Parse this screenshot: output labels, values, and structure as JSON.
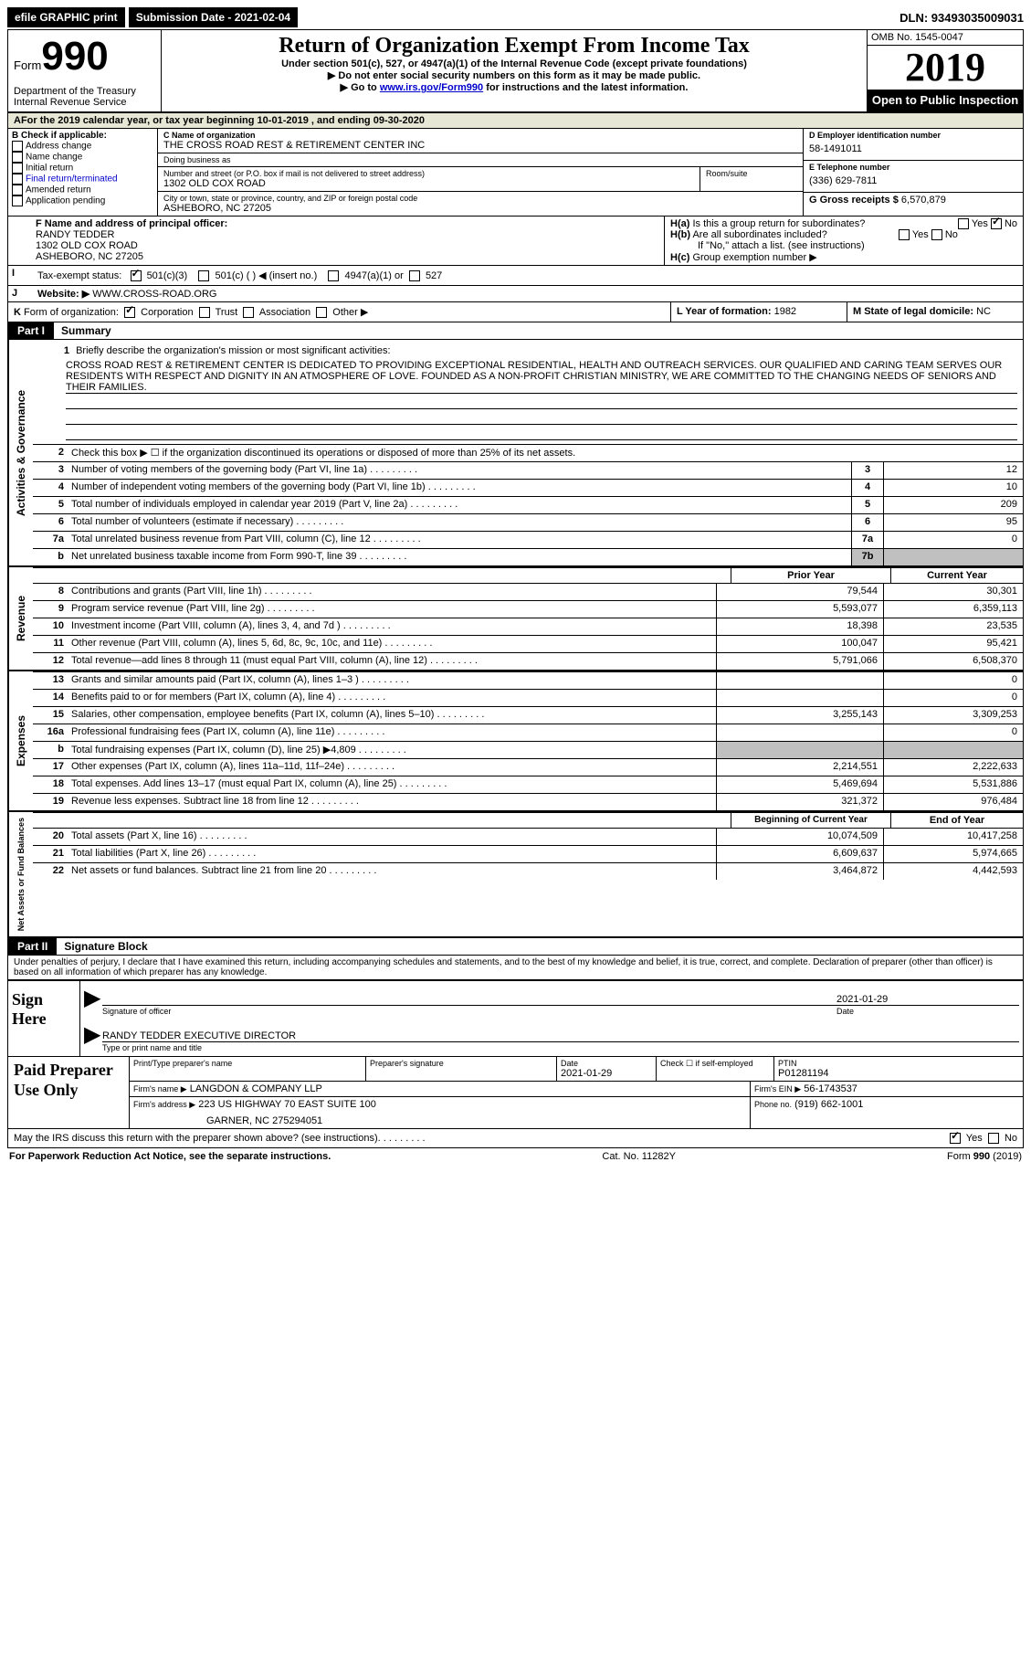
{
  "top": {
    "efile": "efile GRAPHIC print",
    "submission": "Submission Date - 2021-02-04",
    "dln": "DLN: 93493035009031"
  },
  "header": {
    "form_word": "Form",
    "form_num": "990",
    "dept": "Department of the Treasury\nInternal Revenue Service",
    "title": "Return of Organization Exempt From Income Tax",
    "subtitle": "Under section 501(c), 527, or 4947(a)(1) of the Internal Revenue Code (except private foundations)",
    "note1": "▶ Do not enter social security numbers on this form as it may be made public.",
    "note2_pre": "▶ Go to ",
    "note2_link": "www.irs.gov/Form990",
    "note2_post": " for instructions and the latest information.",
    "omb": "OMB No. 1545-0047",
    "year": "2019",
    "inspection": "Open to Public Inspection"
  },
  "periodA": "For the 2019 calendar year, or tax year beginning 10-01-2019   , and ending 09-30-2020",
  "boxB": {
    "label": "B Check if applicable:",
    "opts": [
      "Address change",
      "Name change",
      "Initial return",
      "Final return/terminated",
      "Amended return",
      "Application pending"
    ]
  },
  "boxC": {
    "label_name": "C Name of organization",
    "org_name": "THE CROSS ROAD REST & RETIREMENT CENTER INC",
    "dba_label": "Doing business as",
    "street_label": "Number and street (or P.O. box if mail is not delivered to street address)",
    "room_label": "Room/suite",
    "street": "1302 OLD COX ROAD",
    "city_label": "City or town, state or province, country, and ZIP or foreign postal code",
    "city": "ASHEBORO, NC  27205"
  },
  "boxD": {
    "label": "D Employer identification number",
    "value": "58-1491011"
  },
  "boxE": {
    "label": "E Telephone number",
    "value": "(336) 629-7811"
  },
  "boxG": {
    "label": "G Gross receipts $",
    "value": "6,570,879"
  },
  "boxF": {
    "label": "F  Name and address of principal officer:",
    "name": "RANDY TEDDER",
    "addr1": "1302 OLD COX ROAD",
    "addr2": "ASHEBORO, NC  27205"
  },
  "boxH": {
    "a": "Is this a group return for subordinates?",
    "b": "Are all subordinates included?",
    "note": "If \"No,\" attach a list. (see instructions)",
    "c": "Group exemption number ▶"
  },
  "boxI": {
    "label": "Tax-exempt status:",
    "opt1": "501(c)(3)",
    "opt2": "501(c) (  ) ◀ (insert no.)",
    "opt3": "4947(a)(1) or",
    "opt4": "527"
  },
  "boxJ": {
    "label": "Website: ▶",
    "value": "WWW.CROSS-ROAD.ORG"
  },
  "boxK": {
    "label": "Form of organization:",
    "corp": "Corporation",
    "trust": "Trust",
    "assoc": "Association",
    "other": "Other ▶"
  },
  "boxL": {
    "label": "L Year of formation:",
    "value": "1982"
  },
  "boxM": {
    "label": "M State of legal domicile:",
    "value": "NC"
  },
  "part1": {
    "tab": "Part I",
    "title": "Summary"
  },
  "summary": {
    "q1_label": "Briefly describe the organization's mission or most significant activities:",
    "q1_text": "CROSS ROAD REST & RETIREMENT CENTER IS DEDICATED TO PROVIDING EXCEPTIONAL RESIDENTIAL, HEALTH AND OUTREACH SERVICES. OUR QUALIFIED AND CARING TEAM SERVES OUR RESIDENTS WITH RESPECT AND DIGNITY IN AN ATMOSPHERE OF LOVE. FOUNDED AS A NON-PROFIT CHRISTIAN MINISTRY, WE ARE COMMITTED TO THE CHANGING NEEDS OF SENIORS AND THEIR FAMILIES.",
    "q2": "Check this box ▶ ☐  if the organization discontinued its operations or disposed of more than 25% of its net assets.",
    "lines": [
      {
        "n": "3",
        "d": "Number of voting members of the governing body (Part VI, line 1a)",
        "box": "3",
        "v": "12"
      },
      {
        "n": "4",
        "d": "Number of independent voting members of the governing body (Part VI, line 1b)",
        "box": "4",
        "v": "10"
      },
      {
        "n": "5",
        "d": "Total number of individuals employed in calendar year 2019 (Part V, line 2a)",
        "box": "5",
        "v": "209"
      },
      {
        "n": "6",
        "d": "Total number of volunteers (estimate if necessary)",
        "box": "6",
        "v": "95"
      },
      {
        "n": "7a",
        "d": "Total unrelated business revenue from Part VIII, column (C), line 12",
        "box": "7a",
        "v": "0"
      },
      {
        "n": "b",
        "d": "Net unrelated business taxable income from Form 990-T, line 39",
        "box": "7b",
        "v": "",
        "shaded": true
      }
    ]
  },
  "revenue": {
    "head_prior": "Prior Year",
    "head_curr": "Current Year",
    "vlabel": "Revenue",
    "lines": [
      {
        "n": "8",
        "d": "Contributions and grants (Part VIII, line 1h)",
        "p": "79,544",
        "c": "30,301"
      },
      {
        "n": "9",
        "d": "Program service revenue (Part VIII, line 2g)",
        "p": "5,593,077",
        "c": "6,359,113"
      },
      {
        "n": "10",
        "d": "Investment income (Part VIII, column (A), lines 3, 4, and 7d )",
        "p": "18,398",
        "c": "23,535"
      },
      {
        "n": "11",
        "d": "Other revenue (Part VIII, column (A), lines 5, 6d, 8c, 9c, 10c, and 11e)",
        "p": "100,047",
        "c": "95,421"
      },
      {
        "n": "12",
        "d": "Total revenue—add lines 8 through 11 (must equal Part VIII, column (A), line 12)",
        "p": "5,791,066",
        "c": "6,508,370"
      }
    ]
  },
  "expenses": {
    "vlabel": "Expenses",
    "lines": [
      {
        "n": "13",
        "d": "Grants and similar amounts paid (Part IX, column (A), lines 1–3 )",
        "p": "",
        "c": "0"
      },
      {
        "n": "14",
        "d": "Benefits paid to or for members (Part IX, column (A), line 4)",
        "p": "",
        "c": "0"
      },
      {
        "n": "15",
        "d": "Salaries, other compensation, employee benefits (Part IX, column (A), lines 5–10)",
        "p": "3,255,143",
        "c": "3,309,253"
      },
      {
        "n": "16a",
        "d": "Professional fundraising fees (Part IX, column (A), line 11e)",
        "p": "",
        "c": "0"
      },
      {
        "n": "b",
        "d": "Total fundraising expenses (Part IX, column (D), line 25) ▶4,809",
        "p": "shaded",
        "c": "shaded"
      },
      {
        "n": "17",
        "d": "Other expenses (Part IX, column (A), lines 11a–11d, 11f–24e)",
        "p": "2,214,551",
        "c": "2,222,633"
      },
      {
        "n": "18",
        "d": "Total expenses. Add lines 13–17 (must equal Part IX, column (A), line 25)",
        "p": "5,469,694",
        "c": "5,531,886"
      },
      {
        "n": "19",
        "d": "Revenue less expenses. Subtract line 18 from line 12",
        "p": "321,372",
        "c": "976,484"
      }
    ]
  },
  "netassets": {
    "vlabel": "Net Assets or Fund Balances",
    "head_begin": "Beginning of Current Year",
    "head_end": "End of Year",
    "lines": [
      {
        "n": "20",
        "d": "Total assets (Part X, line 16)",
        "p": "10,074,509",
        "c": "10,417,258"
      },
      {
        "n": "21",
        "d": "Total liabilities (Part X, line 26)",
        "p": "6,609,637",
        "c": "5,974,665"
      },
      {
        "n": "22",
        "d": "Net assets or fund balances. Subtract line 21 from line 20",
        "p": "3,464,872",
        "c": "4,442,593"
      }
    ]
  },
  "part2": {
    "tab": "Part II",
    "title": "Signature Block"
  },
  "sig": {
    "perjury": "Under penalties of perjury, I declare that I have examined this return, including accompanying schedules and statements, and to the best of my knowledge and belief, it is true, correct, and complete. Declaration of preparer (other than officer) is based on all information of which preparer has any knowledge.",
    "sign_here": "Sign Here",
    "sig_officer": "Signature of officer",
    "date_label": "Date",
    "date_val": "2021-01-29",
    "typed_name": "RANDY TEDDER  EXECUTIVE DIRECTOR",
    "typed_label": "Type or print name and title"
  },
  "prep": {
    "title": "Paid Preparer Use Only",
    "h1": "Print/Type preparer's name",
    "h2": "Preparer's signature",
    "h3_label": "Date",
    "h3_val": "2021-01-29",
    "h4": "Check ☐ if self-employed",
    "h5_label": "PTIN",
    "h5_val": "P01281194",
    "firm_name_label": "Firm's name    ▶",
    "firm_name": "LANGDON & COMPANY LLP",
    "firm_ein_label": "Firm's EIN ▶",
    "firm_ein": "56-1743537",
    "firm_addr_label": "Firm's address ▶",
    "firm_addr1": "223 US HIGHWAY 70 EAST SUITE 100",
    "firm_addr2": "GARNER, NC  275294051",
    "phone_label": "Phone no.",
    "phone": "(919) 662-1001"
  },
  "discuss": {
    "q": "May the IRS discuss this return with the preparer shown above? (see instructions)",
    "yes": "Yes",
    "no": "No"
  },
  "footer": {
    "left": "For Paperwork Reduction Act Notice, see the separate instructions.",
    "mid": "Cat. No. 11282Y",
    "right_pre": "Form ",
    "right_bold": "990",
    "right_post": " (2019)"
  },
  "vlabels": {
    "gov": "Activities & Governance"
  }
}
